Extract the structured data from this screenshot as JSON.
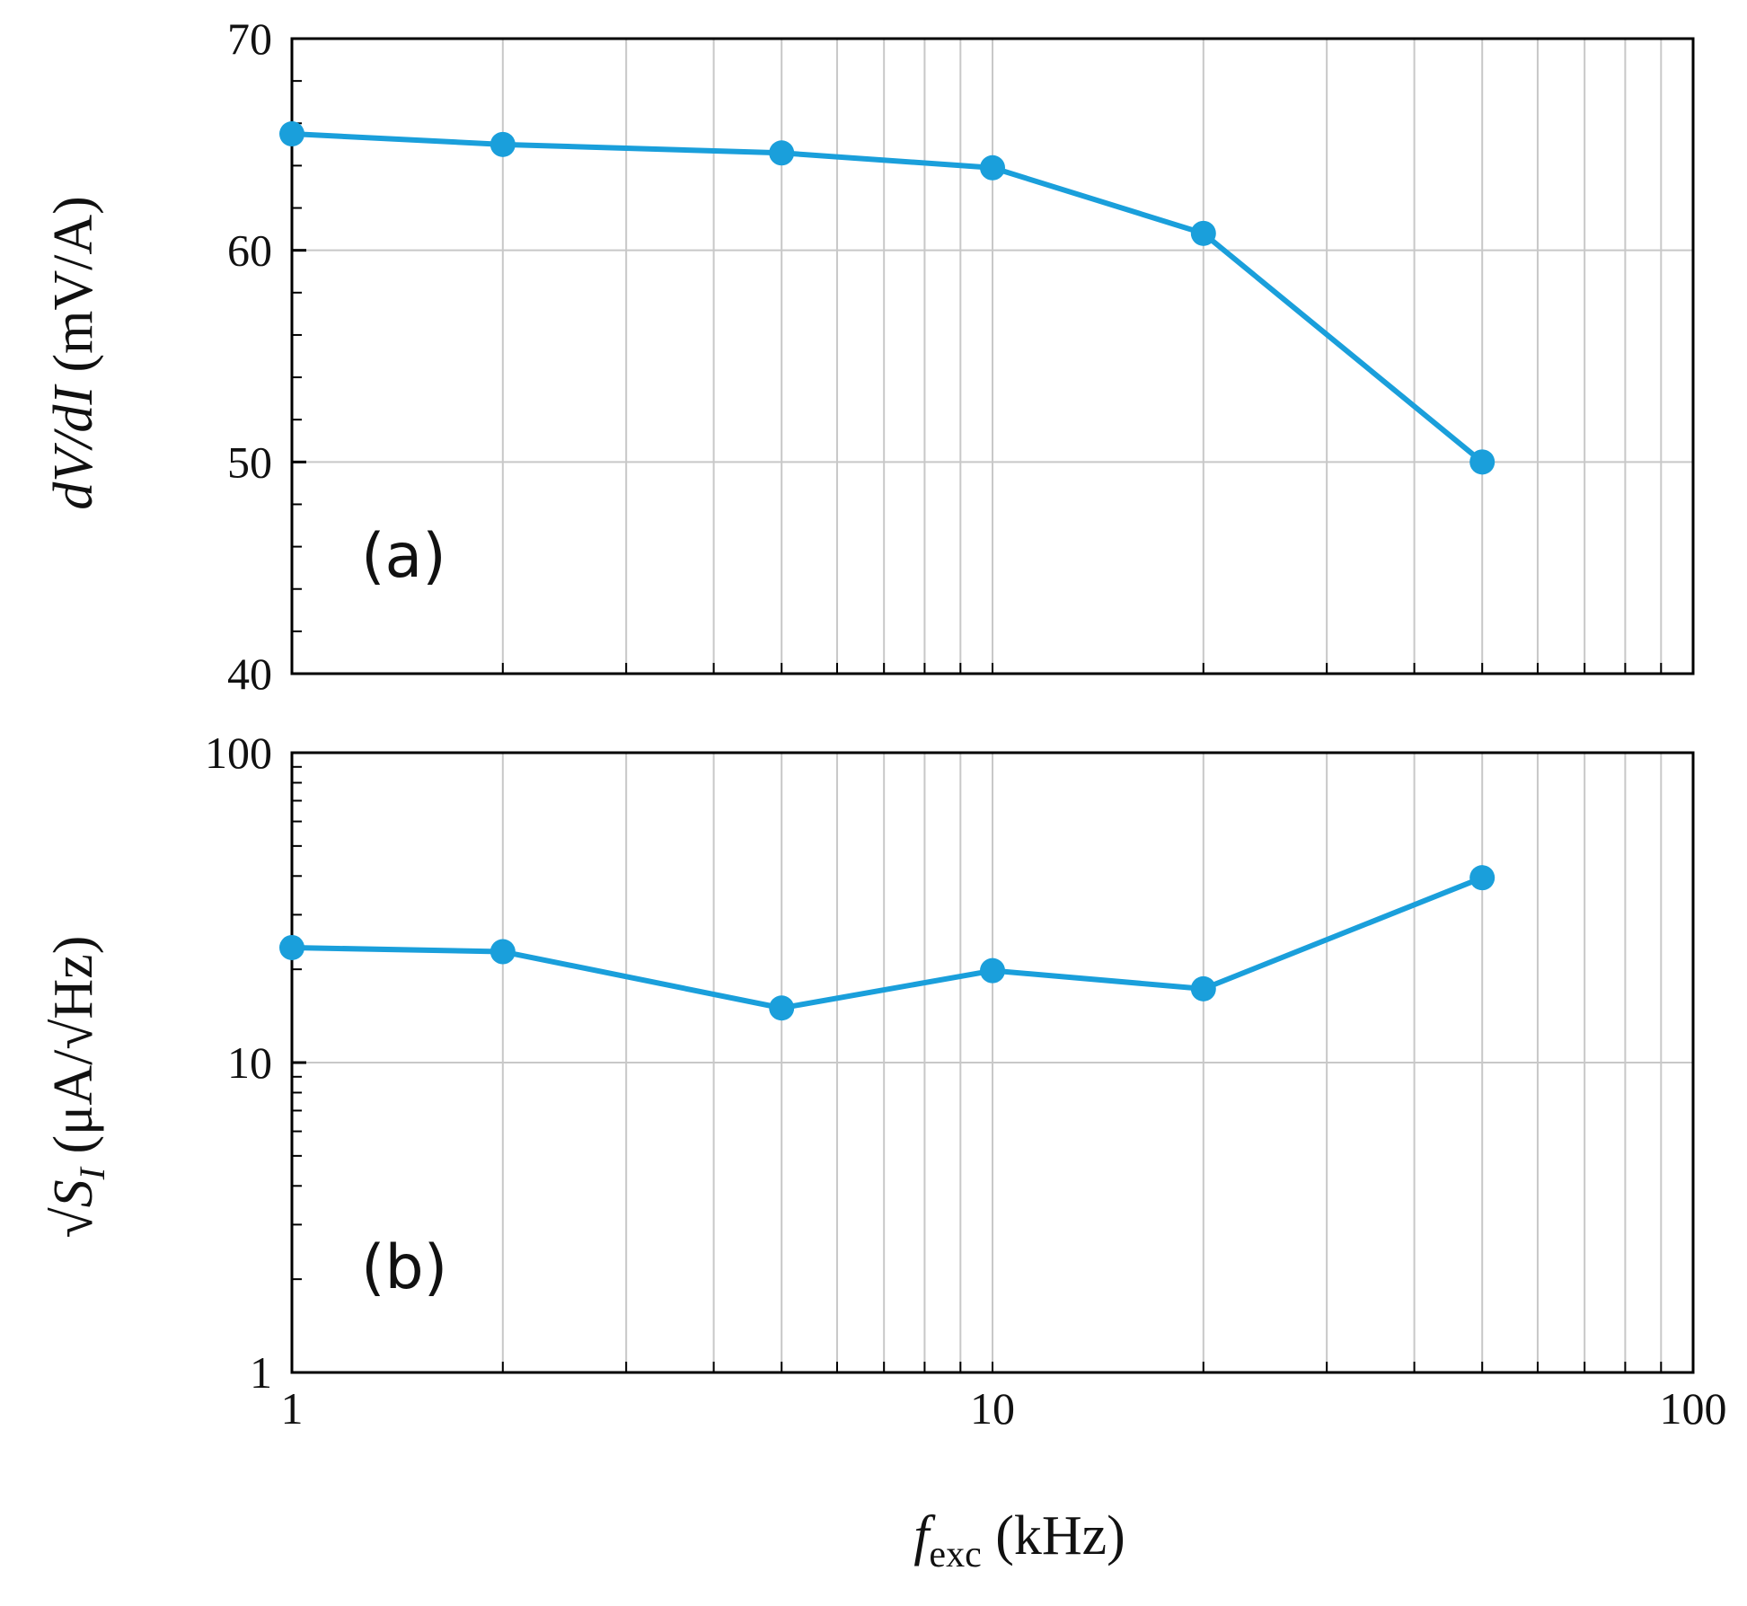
{
  "chart_data": [
    {
      "type": "line",
      "panel_label": "(a)",
      "xscale": "log",
      "yscale": "linear",
      "xlim": [
        1,
        100
      ],
      "ylim": [
        40,
        70
      ],
      "ylabel": {
        "italic": "dV/dI",
        "unit": " (mV/A)"
      },
      "ytick_labels": [
        "40",
        "50",
        "60",
        "70"
      ],
      "ytick_values": [
        40,
        50,
        60,
        70
      ],
      "yminor_step": 2,
      "grid": true,
      "series": [
        {
          "name": "dV/dI",
          "color": "#1a9fdb",
          "x": [
            1,
            2,
            5,
            10,
            20,
            50
          ],
          "y": [
            65.5,
            65.0,
            64.6,
            63.9,
            60.8,
            50.0
          ]
        }
      ]
    },
    {
      "type": "line",
      "panel_label": "(b)",
      "xscale": "log",
      "yscale": "log",
      "xlim": [
        1,
        100
      ],
      "ylim": [
        1,
        100
      ],
      "ylabel": {
        "prefix": "√",
        "italic": "S",
        "sub": "I",
        "unit": " (μA/√Hz)"
      },
      "ytick_labels": [
        "1",
        "10",
        "100"
      ],
      "ytick_values": [
        1,
        10,
        100
      ],
      "grid": true,
      "series": [
        {
          "name": "sqrt S_I",
          "color": "#1a9fdb",
          "x": [
            1,
            2,
            5,
            10,
            20,
            50
          ],
          "y": [
            23.5,
            22.8,
            15.0,
            19.8,
            17.3,
            39.5
          ]
        }
      ]
    }
  ],
  "xaxis": {
    "tick_labels": [
      "1",
      "10",
      "100"
    ],
    "tick_values": [
      1,
      10,
      100
    ],
    "label": {
      "italic": "f",
      "sub": "exc",
      "unit": " (kHz)"
    }
  },
  "colors": {
    "line": "#1a9fdb",
    "grid": "#c8c8c8",
    "axis": "#000000"
  }
}
